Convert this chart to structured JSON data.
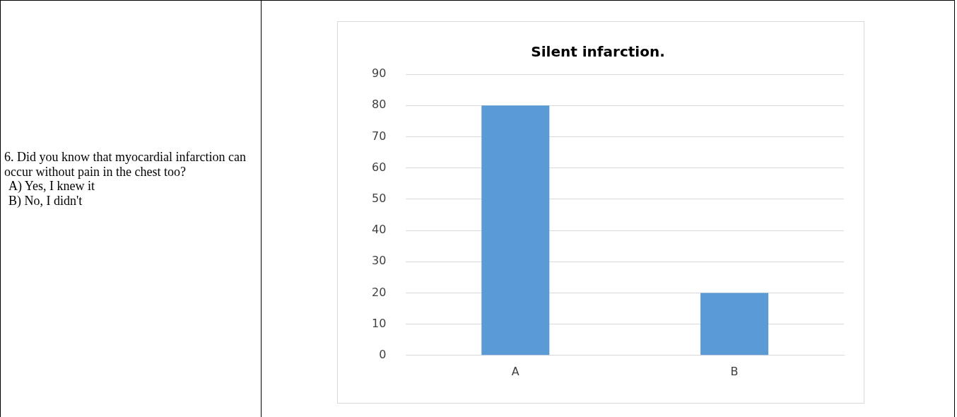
{
  "chart_data": {
    "type": "bar",
    "title": "Silent infarction.",
    "categories": [
      "A",
      "B"
    ],
    "values": [
      80,
      20
    ],
    "color": "#5b9bd5",
    "ylim": [
      0,
      90
    ],
    "yticks": [
      0,
      10,
      20,
      30,
      40,
      50,
      60,
      70,
      80,
      90
    ],
    "grid": "y",
    "legend": false,
    "annotations": [
      "6.  Did you know that myocardial infarction can occur without pain in the chest too?",
      "A) Yes, I knew it",
      "B) No, I didn't"
    ]
  }
}
